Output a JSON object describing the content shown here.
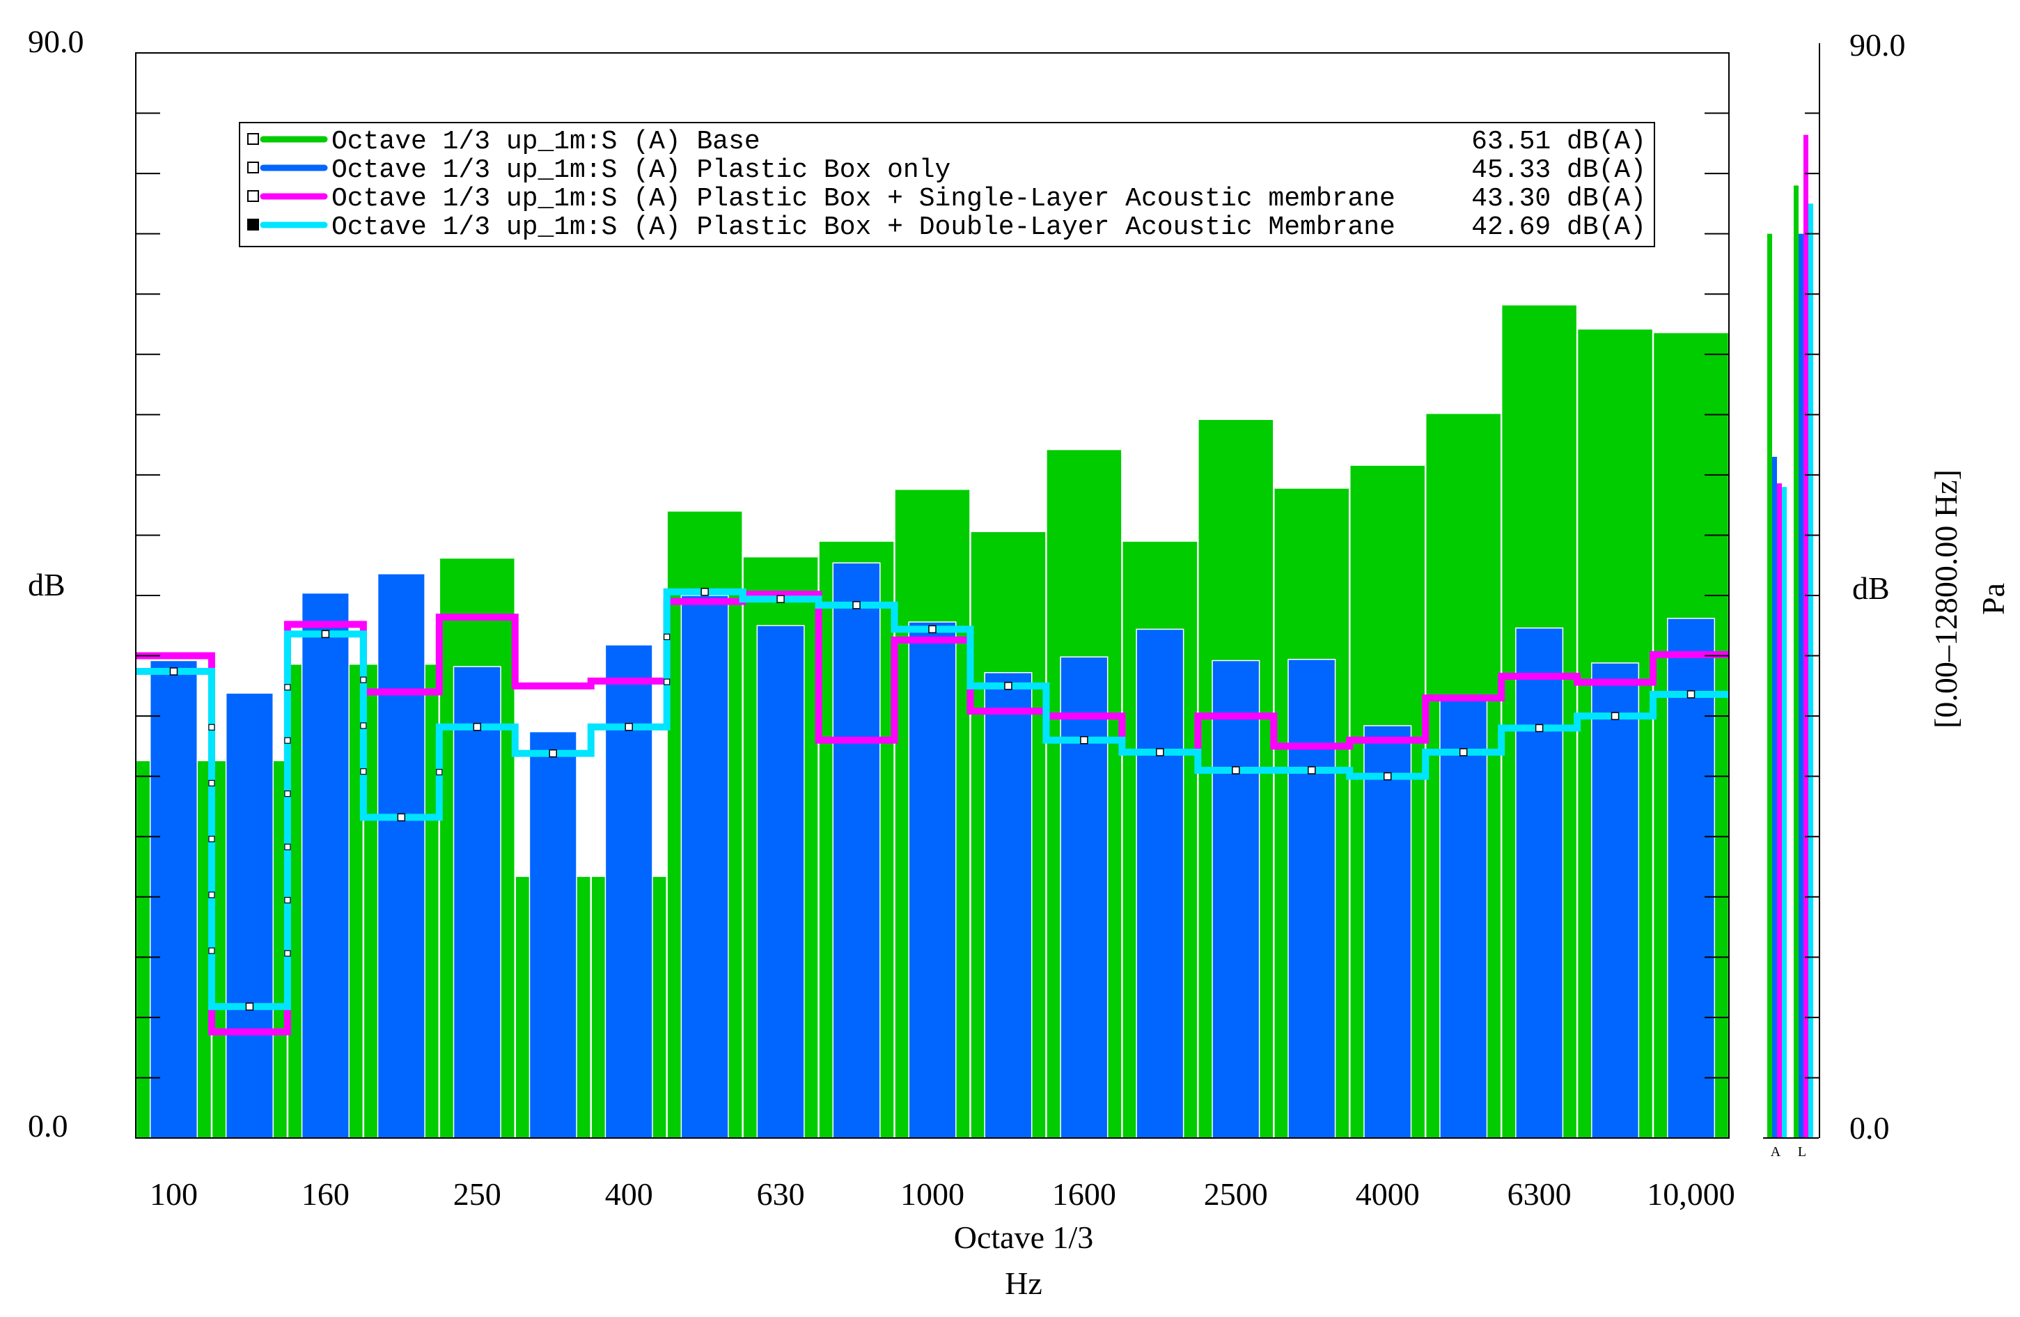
{
  "chart_data": {
    "type": "bar",
    "title": "",
    "xlabel": "Octave 1/3",
    "xunit": "Hz",
    "ylabel": "dB",
    "right_ylabel": "dB",
    "right_unit": "Pa",
    "right_range_label": "[0.00–12800.00 Hz]",
    "ylim": [
      0,
      90
    ],
    "y_top_label": "90.0",
    "y_bottom_label": "0.0",
    "x_scale": "log",
    "categories": [
      "100",
      "125",
      "160",
      "200",
      "250",
      "315",
      "400",
      "500",
      "630",
      "800",
      "1000",
      "1250",
      "1600",
      "2000",
      "2500",
      "3150",
      "4000",
      "5000",
      "6300",
      "8000",
      "10000"
    ],
    "x_tick_labels": [
      "100",
      "160",
      "250",
      "400",
      "630",
      "1000",
      "1600",
      "2500",
      "4000",
      "6300",
      "10,000"
    ],
    "x_tick_categories": [
      0,
      2,
      4,
      6,
      8,
      10,
      12,
      14,
      16,
      18,
      20
    ],
    "series": [
      {
        "name": "Octave 1/3 up_1m:S (A) Base",
        "style": "bar",
        "color": "#00cc00",
        "total": "63.51 dB(A)",
        "values": [
          31.3,
          31.3,
          39.3,
          39.3,
          48.1,
          21.7,
          21.7,
          52.0,
          48.2,
          49.5,
          53.8,
          50.3,
          57.1,
          49.5,
          59.6,
          53.9,
          55.8,
          60.1,
          69.1,
          67.1,
          66.8
        ],
        "overall_bars": {
          "A": 75.0,
          "L": 79.0
        }
      },
      {
        "name": "Octave 1/3 up_1m:S (A) Plastic Box only",
        "style": "bar",
        "color": "#0066ff",
        "total": "45.33 dB(A)",
        "values": [
          39.6,
          36.9,
          45.2,
          46.8,
          39.1,
          33.7,
          40.9,
          45.0,
          42.5,
          47.7,
          42.8,
          38.6,
          39.9,
          42.2,
          39.6,
          39.7,
          34.2,
          36.5,
          42.3,
          39.4,
          43.1
        ],
        "overall_bars": {
          "A": 56.5,
          "L": 75.0
        }
      },
      {
        "name": "Octave 1/3 up_1m:S (A) Plastic Box + Single-Layer Acoustic membrane",
        "style": "step",
        "color": "#ff00ff",
        "total": "43.30 dB(A)",
        "values": [
          40.0,
          8.8,
          42.6,
          37.0,
          43.2,
          37.5,
          37.9,
          44.5,
          45.1,
          33.0,
          41.3,
          35.4,
          35.0,
          32.0,
          35.0,
          32.5,
          33.0,
          36.5,
          38.3,
          37.8,
          40.1
        ],
        "overall_bars": {
          "A": 54.3,
          "L": 83.2
        }
      },
      {
        "name": "Octave 1/3 up_1m:S (A) Plastic Box + Double-Layer Acoustic Membrane",
        "style": "step",
        "color": "#00e5ff",
        "total": "42.69 dB(A)",
        "values": [
          38.7,
          10.9,
          41.8,
          26.6,
          34.1,
          31.9,
          34.1,
          45.3,
          44.7,
          44.2,
          42.2,
          37.5,
          33.0,
          32.0,
          30.5,
          30.5,
          30.0,
          32.0,
          34.0,
          35.0,
          36.8
        ],
        "overall_bars": {
          "A": 54.0,
          "L": 77.5
        }
      }
    ],
    "legend": {
      "placement": "top-left"
    },
    "grid": false,
    "overall_bar_labels": [
      "A",
      "L"
    ]
  }
}
